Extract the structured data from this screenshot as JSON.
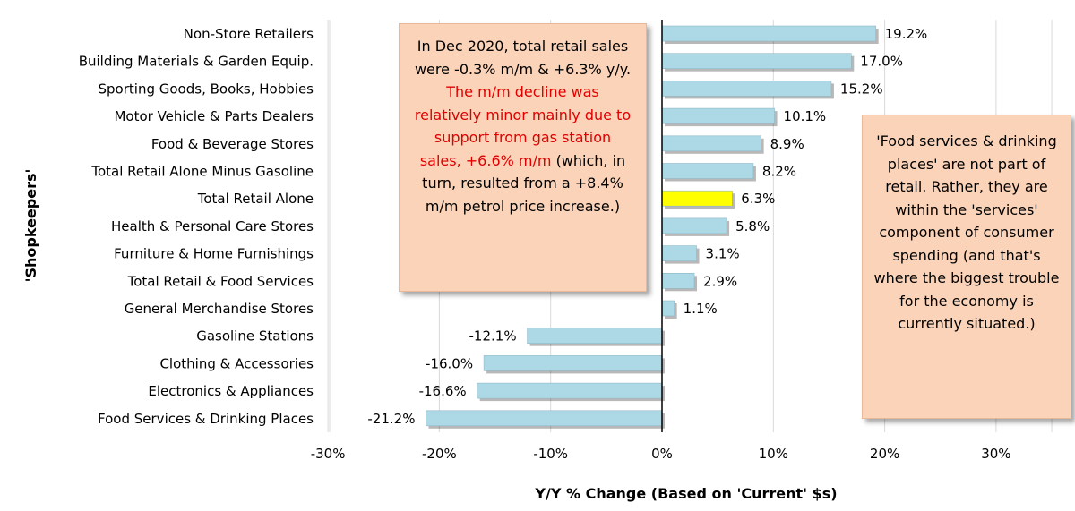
{
  "chart_data": {
    "type": "bar",
    "orientation": "horizontal",
    "categories": [
      "Non-Store Retailers",
      "Building Materials & Garden Equip.",
      "Sporting Goods, Books, Hobbies",
      "Motor Vehicle & Parts Dealers",
      "Food & Beverage Stores",
      "Total Retail Alone Minus Gasoline",
      "Total Retail Alone",
      "Health & Personal Care Stores",
      "Furniture & Home Furnishings",
      "Total Retail & Food Services",
      "General Merchandise Stores",
      "Gasoline Stations",
      "Clothing & Accessories",
      "Electronics & Appliances",
      "Food Services & Drinking Places"
    ],
    "values": [
      19.2,
      17.0,
      15.2,
      10.1,
      8.9,
      8.2,
      6.3,
      5.8,
      3.1,
      2.9,
      1.1,
      -12.1,
      -16.0,
      -16.6,
      -21.2
    ],
    "value_labels": [
      "19.2%",
      "17.0%",
      "15.2%",
      "10.1%",
      "8.9%",
      "8.2%",
      "6.3%",
      "5.8%",
      "3.1%",
      "2.9%",
      "1.1%",
      "-12.1%",
      "-16.0%",
      "-16.6%",
      "-21.2%"
    ],
    "highlight_index": 6,
    "colors": {
      "bar": "#add8e6",
      "highlight": "#ffff00",
      "grid": "#d9d9d9",
      "zero_line": "#000000",
      "note_fill": "#fbd3b8",
      "note_red": "#e00000"
    },
    "xlim": [
      -30,
      35
    ],
    "xticks": [
      -30,
      -20,
      -10,
      0,
      10,
      20,
      30
    ],
    "xtick_labels": [
      "-30%",
      "-20%",
      "-10%",
      "0%",
      "10%",
      "20%",
      "30%"
    ],
    "xlabel": "Y/Y % Change (Based on 'Current' $s)",
    "ylabel": "'Shopkeepers'",
    "grid": "vertical"
  },
  "annotations": {
    "left_note": {
      "part1": "In Dec 2020, total retail sales were -0.3% m/m & +6.3% y/y.",
      "part2": "The m/m decline was relatively minor mainly due to support from gas station sales, +6.6% m/m",
      "part3": "(which, in turn, resulted from a +8.4% m/m petrol price increase.)"
    },
    "right_note": {
      "text": "'Food services & drinking places' are not part of retail. Rather, they are within the 'services' component of consumer spending (and that's where the biggest trouble for the economy is currently situated.)"
    }
  }
}
